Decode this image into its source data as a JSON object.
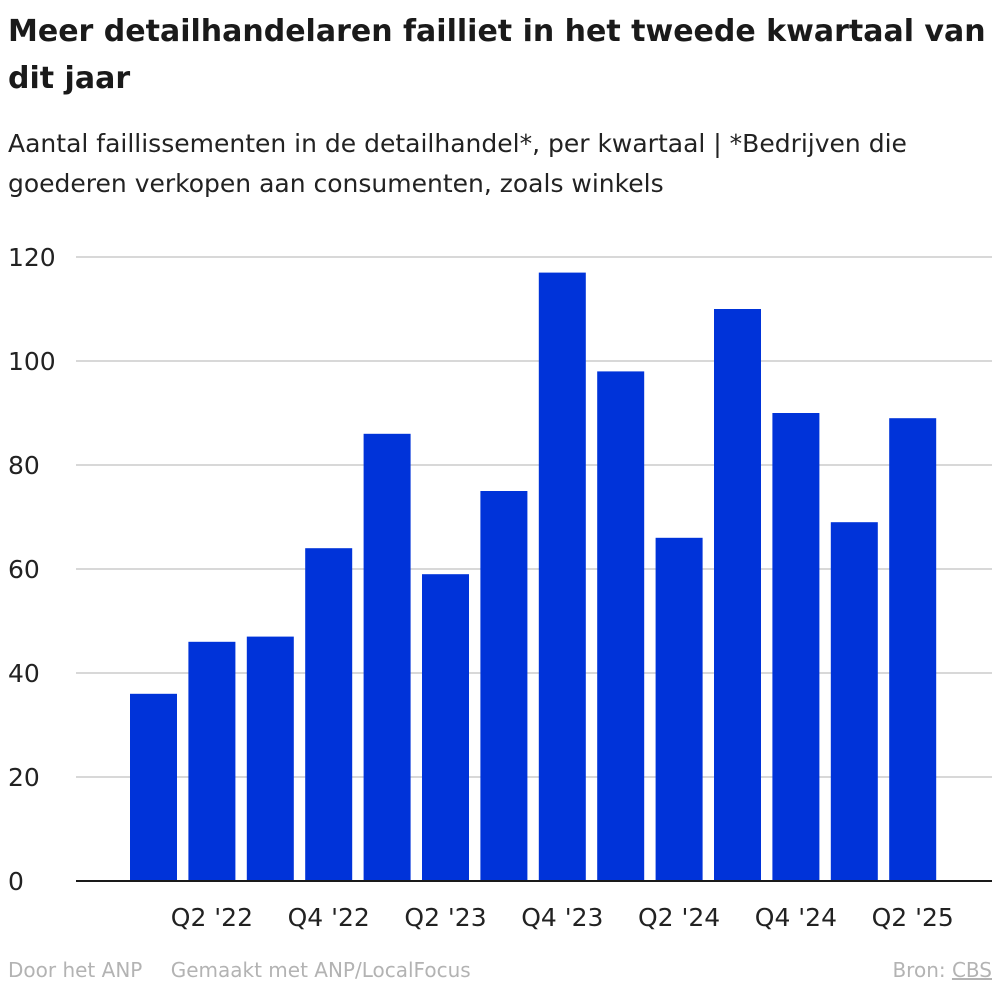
{
  "title": "Meer detailhandelaren failliet in het tweede kwartaal van dit jaar",
  "subtitle": "Aantal faillissementen in de detailhandel*, per kwartaal | *Bedrijven die goederen verkopen aan consumenten, zoals winkels",
  "footer": {
    "credit": "Door het ANP",
    "made_with": "Gemaakt met ANP/LocalFocus",
    "source_label": "Bron:",
    "source_link": "CBS"
  },
  "chart_data": {
    "type": "bar",
    "categories": [
      "Q1 '22",
      "Q2 '22",
      "Q3 '22",
      "Q4 '22",
      "Q1 '23",
      "Q2 '23",
      "Q3 '23",
      "Q4 '23",
      "Q1 '24",
      "Q2 '24",
      "Q3 '24",
      "Q4 '24",
      "Q1 '25",
      "Q2 '25"
    ],
    "tick_labels": [
      "Q2 '22",
      "Q4 '22",
      "Q2 '23",
      "Q4 '23",
      "Q2 '24",
      "Q4 '24",
      "Q2 '25"
    ],
    "values": [
      36,
      46,
      47,
      64,
      86,
      59,
      75,
      117,
      98,
      66,
      110,
      90,
      69,
      89
    ],
    "ylim": [
      0,
      120
    ],
    "yticks": [
      0,
      20,
      40,
      60,
      80,
      100,
      120
    ],
    "grid": true,
    "bar_color": "#0033d9",
    "grid_color": "#cccccc",
    "axis_color": "#1a1a1a"
  }
}
